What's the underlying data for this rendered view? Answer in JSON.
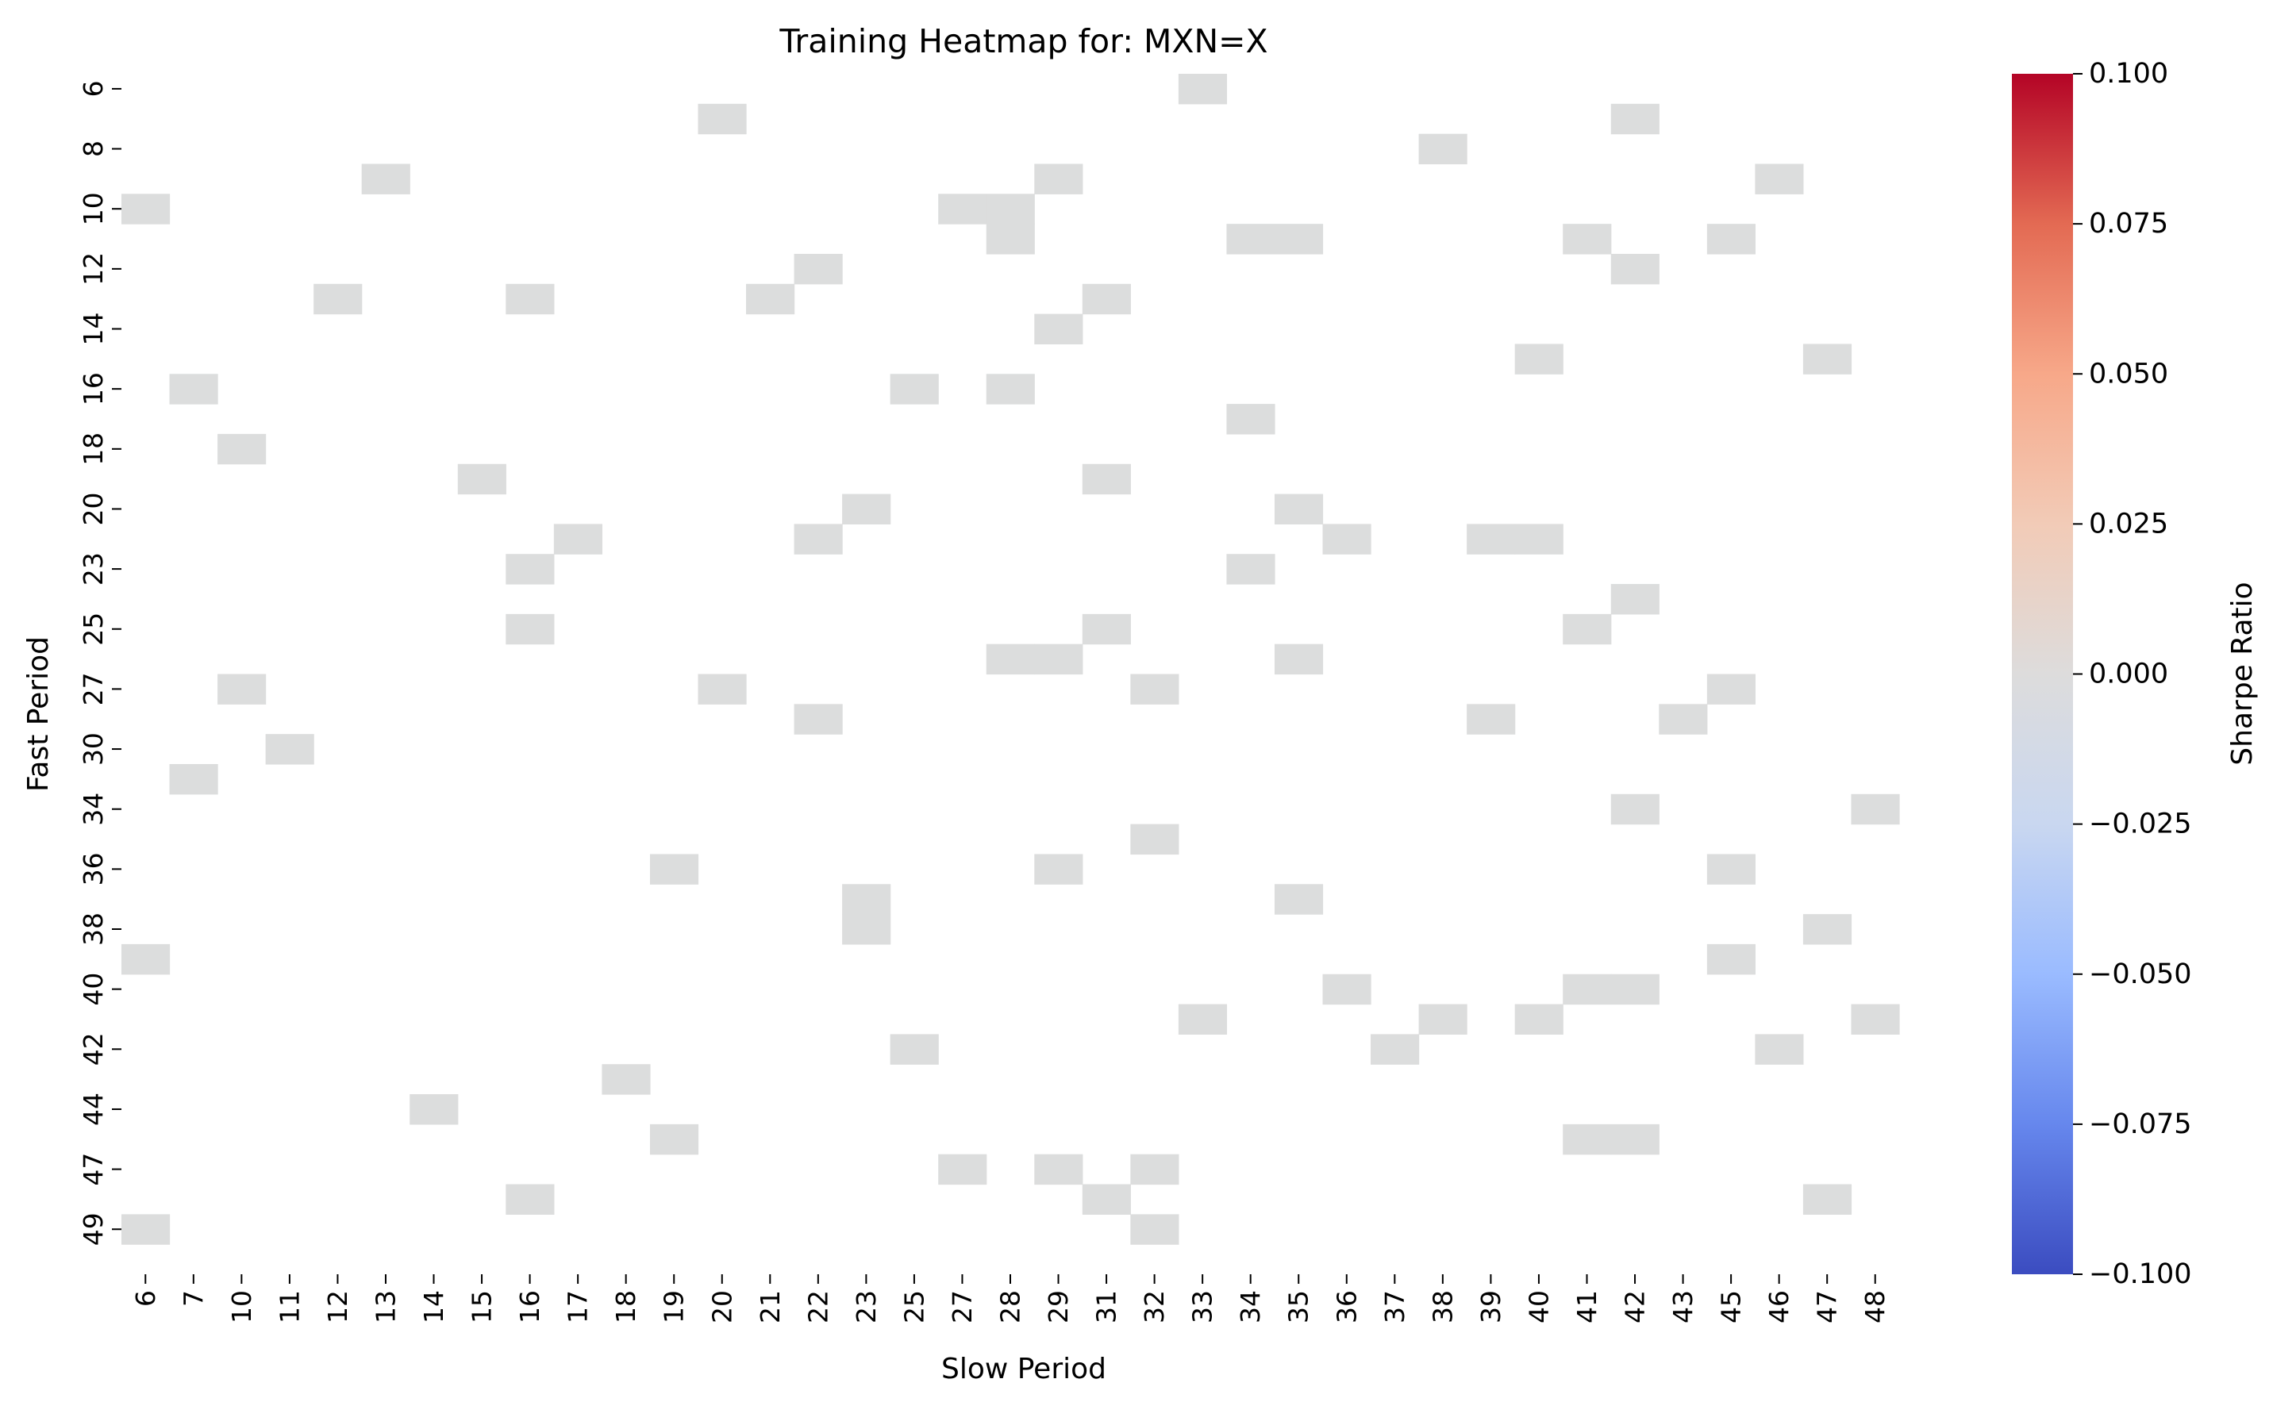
{
  "chart_data": {
    "type": "heatmap",
    "title": "Training Heatmap for: MXN=X",
    "xlabel": "Slow Period",
    "ylabel": "Fast Period",
    "x_ticks": [
      "6",
      "7",
      "10",
      "11",
      "12",
      "13",
      "14",
      "15",
      "16",
      "17",
      "18",
      "19",
      "20",
      "21",
      "22",
      "23",
      "25",
      "27",
      "28",
      "29",
      "31",
      "32",
      "33",
      "34",
      "35",
      "36",
      "37",
      "38",
      "39",
      "40",
      "41",
      "42",
      "43",
      "45",
      "46",
      "47",
      "48"
    ],
    "y_ticks": [
      "6",
      "8",
      "10",
      "12",
      "14",
      "16",
      "18",
      "20",
      "23",
      "25",
      "27",
      "30",
      "34",
      "36",
      "38",
      "40",
      "42",
      "44",
      "47",
      "49"
    ],
    "n_cols": 37,
    "n_rows": 40,
    "cell_value": 0.0,
    "cell_color": "#dcdddd",
    "cells": [
      [
        0,
        22
      ],
      [
        1,
        12
      ],
      [
        1,
        31
      ],
      [
        2,
        27
      ],
      [
        3,
        5
      ],
      [
        3,
        19
      ],
      [
        3,
        34
      ],
      [
        4,
        0
      ],
      [
        4,
        17
      ],
      [
        4,
        18
      ],
      [
        5,
        18
      ],
      [
        5,
        23
      ],
      [
        5,
        24
      ],
      [
        5,
        30
      ],
      [
        5,
        33
      ],
      [
        6,
        14
      ],
      [
        6,
        31
      ],
      [
        7,
        4
      ],
      [
        7,
        8
      ],
      [
        7,
        13
      ],
      [
        7,
        20
      ],
      [
        8,
        19
      ],
      [
        9,
        29
      ],
      [
        9,
        35
      ],
      [
        10,
        1
      ],
      [
        10,
        16
      ],
      [
        10,
        18
      ],
      [
        11,
        23
      ],
      [
        12,
        2
      ],
      [
        13,
        7
      ],
      [
        13,
        20
      ],
      [
        14,
        15
      ],
      [
        14,
        24
      ],
      [
        15,
        9
      ],
      [
        15,
        14
      ],
      [
        15,
        25
      ],
      [
        15,
        28
      ],
      [
        15,
        29
      ],
      [
        16,
        8
      ],
      [
        16,
        23
      ],
      [
        17,
        31
      ],
      [
        18,
        8
      ],
      [
        18,
        20
      ],
      [
        18,
        30
      ],
      [
        19,
        18
      ],
      [
        19,
        19
      ],
      [
        19,
        24
      ],
      [
        20,
        2
      ],
      [
        20,
        12
      ],
      [
        20,
        21
      ],
      [
        20,
        33
      ],
      [
        21,
        14
      ],
      [
        21,
        28
      ],
      [
        21,
        32
      ],
      [
        22,
        3
      ],
      [
        23,
        1
      ],
      [
        24,
        31
      ],
      [
        24,
        36
      ],
      [
        25,
        21
      ],
      [
        26,
        11
      ],
      [
        26,
        19
      ],
      [
        26,
        33
      ],
      [
        27,
        15
      ],
      [
        27,
        24
      ],
      [
        28,
        15
      ],
      [
        28,
        35
      ],
      [
        29,
        0
      ],
      [
        29,
        33
      ],
      [
        30,
        25
      ],
      [
        30,
        30
      ],
      [
        30,
        31
      ],
      [
        31,
        22
      ],
      [
        31,
        27
      ],
      [
        31,
        29
      ],
      [
        31,
        36
      ],
      [
        32,
        16
      ],
      [
        32,
        26
      ],
      [
        32,
        34
      ],
      [
        33,
        10
      ],
      [
        34,
        6
      ],
      [
        35,
        11
      ],
      [
        35,
        30
      ],
      [
        35,
        31
      ],
      [
        36,
        17
      ],
      [
        36,
        19
      ],
      [
        36,
        21
      ],
      [
        37,
        8
      ],
      [
        37,
        20
      ],
      [
        37,
        35
      ],
      [
        38,
        0
      ],
      [
        38,
        21
      ]
    ],
    "colorbar": {
      "label": "Sharpe Ratio",
      "min": -0.1,
      "max": 0.1,
      "ticks": [
        "0.100",
        "0.075",
        "0.050",
        "0.025",
        "0.000",
        "−0.025",
        "−0.050",
        "−0.075",
        "−0.100"
      ],
      "colormap": "coolwarm",
      "stops": [
        "#3b4cc0",
        "#6687ed",
        "#9abbff",
        "#c9d7f0",
        "#dddcdc",
        "#f2cbb7",
        "#f7a889",
        "#e36a53",
        "#b40426"
      ]
    }
  }
}
